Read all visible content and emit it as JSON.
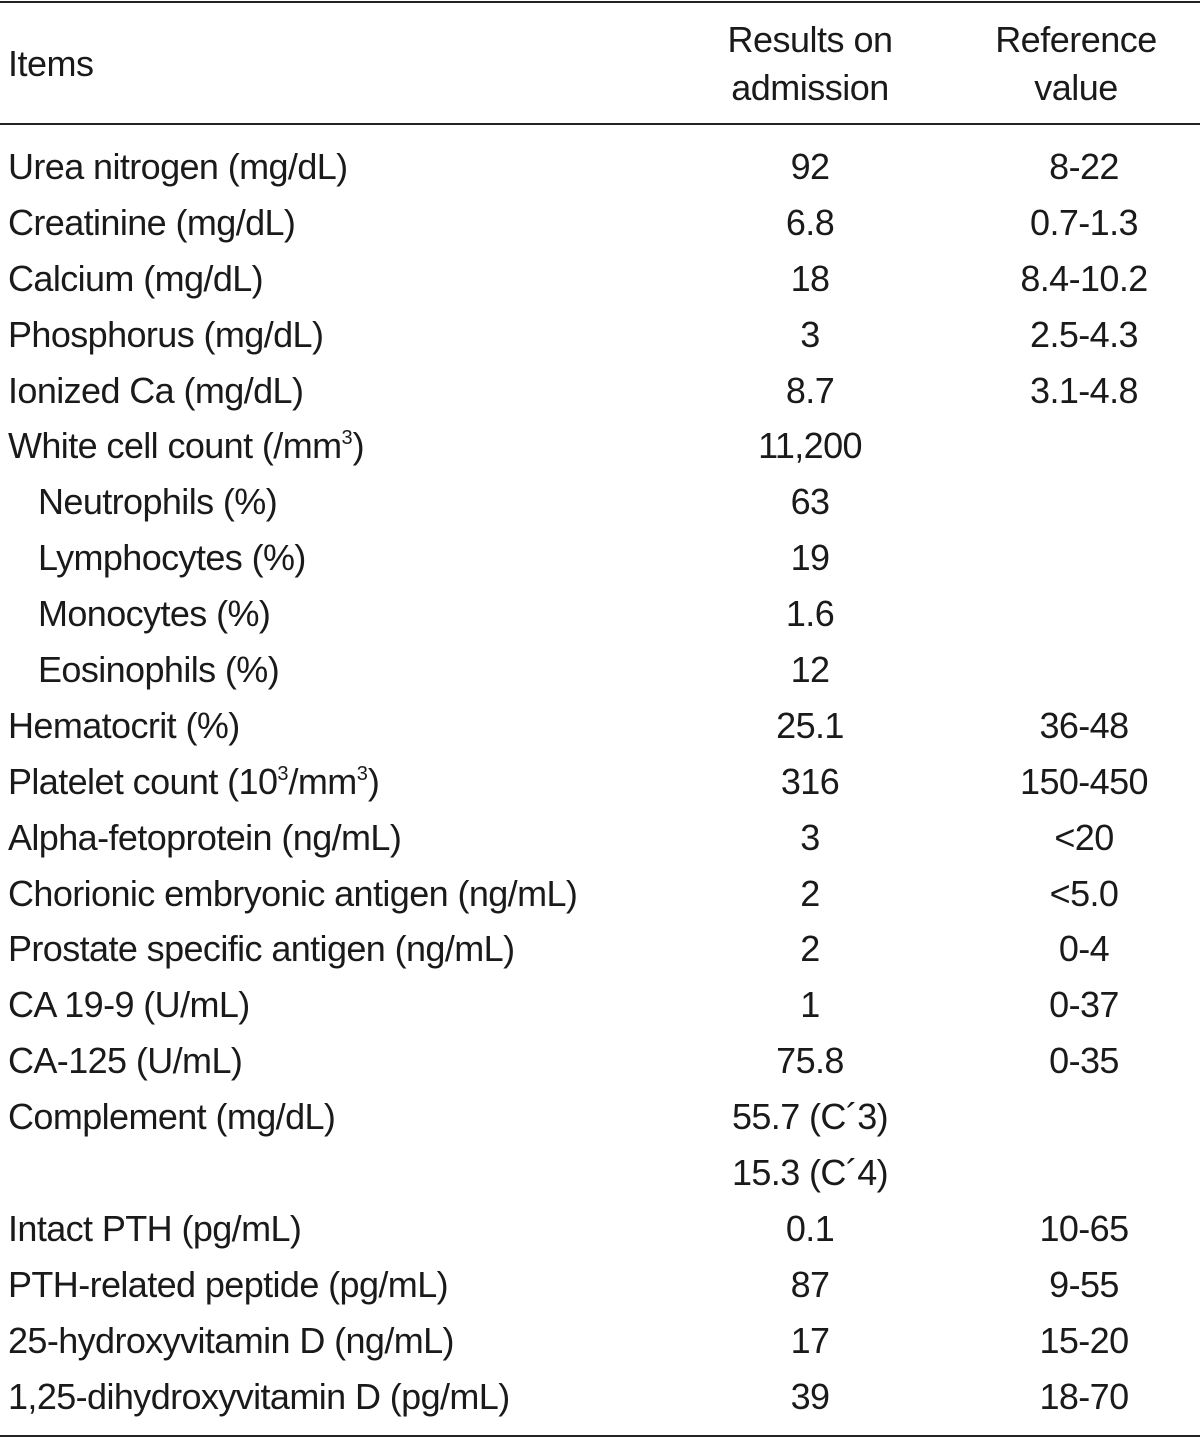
{
  "table": {
    "headers": {
      "items": "Items",
      "results_line1": "Results on",
      "results_line2": "admission",
      "reference_line1": "Reference",
      "reference_line2": "value"
    },
    "rows": [
      {
        "item": "Urea nitrogen (mg/dL)",
        "result": "92",
        "reference": "8-22"
      },
      {
        "item": "Creatinine (mg/dL)",
        "result": "6.8",
        "reference": "0.7-1.3"
      },
      {
        "item": "Calcium (mg/dL)",
        "result": "18",
        "reference": "8.4-10.2"
      },
      {
        "item": "Phosphorus (mg/dL)",
        "result": "3",
        "reference": "2.5-4.3"
      },
      {
        "item": "Ionized Ca (mg/dL)",
        "result": "8.7",
        "reference": "3.1-4.8"
      },
      {
        "item_prefix": "White cell count (/mm",
        "item_sup": "3",
        "item_suffix": ")",
        "result": "11,200",
        "reference": ""
      },
      {
        "item": "Neutrophils (%)",
        "result": "63",
        "reference": ""
      },
      {
        "item": "Lymphocytes (%)",
        "result": "19",
        "reference": ""
      },
      {
        "item": "Monocytes (%)",
        "result": "1.6",
        "reference": ""
      },
      {
        "item": "Eosinophils (%)",
        "result": "12",
        "reference": ""
      },
      {
        "item": "Hematocrit (%)",
        "result": "25.1",
        "reference": "36-48"
      },
      {
        "item_prefix": "Platelet count (10",
        "item_sup": "3",
        "item_mid": "/mm",
        "item_sup2": "3",
        "item_suffix": ")",
        "result": "316",
        "reference": "150-450"
      },
      {
        "item": "Alpha-fetoprotein (ng/mL)",
        "result": "3",
        "reference": "<20"
      },
      {
        "item": "Chorionic embryonic antigen (ng/mL)",
        "result": "2",
        "reference": "<5.0"
      },
      {
        "item": "Prostate specific antigen (ng/mL)",
        "result": "2",
        "reference": "0-4"
      },
      {
        "item": "CA 19-9 (U/mL)",
        "result": "1",
        "reference": "0-37"
      },
      {
        "item": "CA-125 (U/mL)",
        "result": "75.8",
        "reference": "0-35"
      },
      {
        "item": "Complement (mg/dL)",
        "result": "55.7 (C´3)",
        "reference": ""
      },
      {
        "item": "",
        "result": "15.3 (C´4)",
        "reference": ""
      },
      {
        "item": "Intact PTH (pg/mL)",
        "result": "0.1",
        "reference": "10-65"
      },
      {
        "item": "PTH-related peptide (pg/mL)",
        "result": "87",
        "reference": "9-55"
      },
      {
        "item": "25-hydroxyvitamin D (ng/mL)",
        "result": "17",
        "reference": "15-20"
      },
      {
        "item": "1,25-dihydroxyvitamin D (pg/mL)",
        "result": "39",
        "reference": "18-70"
      }
    ]
  }
}
